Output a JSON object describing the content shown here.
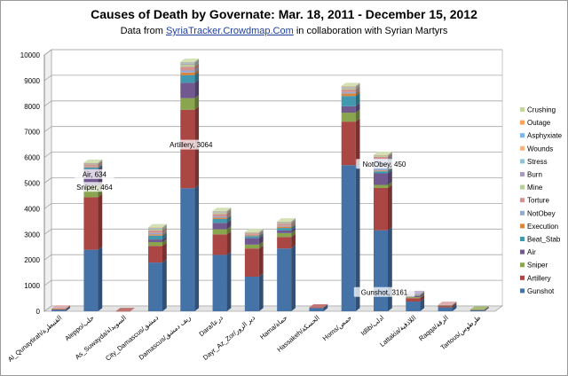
{
  "chart_data": {
    "type": "bar",
    "stacked": true,
    "three_d": true,
    "title": "Causes of Death by Governate: Mar. 18, 2011 - December 15, 2012",
    "subtitle_prefix": "Data from ",
    "subtitle_link": "SyriaTracker.Crowdmap.Com",
    "subtitle_suffix": "  in collaboration with Syrian Martyrs",
    "xlabel": "",
    "ylabel": "",
    "ylim": [
      0,
      10000
    ],
    "yticks": [
      0,
      1000,
      2000,
      3000,
      4000,
      5000,
      6000,
      7000,
      8000,
      9000,
      10000
    ],
    "grid": true,
    "legend_position": "right",
    "categories": [
      "Al_Qunaytirah/القنيطرة",
      "Aleppo/حلب",
      "As_Suwayda/السويداء",
      "City_Damascus/دمشق",
      "Damascus/ريف دمشق",
      "Dara/درعا",
      "Dayr_Az_Zor/دير الزور",
      "Hama/حماة",
      "Hassakeh/الحسكة",
      "Homs/حمص",
      "Idlib/ادلب",
      "Lattakia/اللاذقية",
      "Raqqa/الرقة",
      "Tartous/طرطوس"
    ],
    "series": [
      {
        "name": "Gunshot",
        "color": "#4572a7",
        "values": [
          60,
          2400,
          0,
          1900,
          4800,
          2200,
          1350,
          2450,
          130,
          5700,
          3161,
          380,
          150,
          40
        ]
      },
      {
        "name": "Artillery",
        "color": "#aa4643",
        "values": [
          30,
          2050,
          10,
          650,
          3064,
          800,
          1100,
          450,
          20,
          1700,
          1650,
          130,
          60,
          20
        ]
      },
      {
        "name": "Sniper",
        "color": "#89a54e",
        "values": [
          10,
          464,
          0,
          150,
          450,
          200,
          150,
          150,
          0,
          350,
          120,
          40,
          10,
          5
        ]
      },
      {
        "name": "Air",
        "color": "#71588f",
        "values": [
          0,
          634,
          0,
          100,
          600,
          250,
          250,
          100,
          0,
          250,
          450,
          50,
          20,
          0
        ]
      },
      {
        "name": "Beat_Stab",
        "color": "#4198af",
        "values": [
          0,
          60,
          0,
          150,
          300,
          150,
          80,
          100,
          0,
          400,
          80,
          20,
          0,
          0
        ]
      },
      {
        "name": "Execution",
        "color": "#db843d",
        "values": [
          0,
          20,
          0,
          50,
          100,
          50,
          30,
          50,
          0,
          100,
          30,
          10,
          0,
          0
        ]
      },
      {
        "name": "NotObey",
        "color": "#93a9cf",
        "values": [
          0,
          20,
          0,
          50,
          80,
          50,
          20,
          30,
          0,
          50,
          450,
          10,
          0,
          0
        ]
      },
      {
        "name": "Torture",
        "color": "#d19392",
        "values": [
          10,
          80,
          0,
          100,
          150,
          100,
          50,
          80,
          0,
          100,
          80,
          20,
          10,
          0
        ]
      },
      {
        "name": "Mine",
        "color": "#b9cd96",
        "values": [
          0,
          30,
          0,
          50,
          80,
          50,
          20,
          30,
          0,
          50,
          30,
          10,
          0,
          0
        ]
      },
      {
        "name": "Burn",
        "color": "#a99bbd",
        "values": [
          0,
          10,
          0,
          20,
          30,
          20,
          10,
          20,
          0,
          30,
          20,
          5,
          0,
          0
        ]
      },
      {
        "name": "Stress",
        "color": "#91c3d5",
        "values": [
          0,
          10,
          0,
          20,
          30,
          20,
          10,
          20,
          0,
          20,
          10,
          0,
          0,
          0
        ]
      },
      {
        "name": "Wounds",
        "color": "#f9b381",
        "values": [
          0,
          5,
          0,
          10,
          20,
          10,
          5,
          10,
          0,
          10,
          5,
          0,
          0,
          0
        ]
      },
      {
        "name": "Asphyxiate",
        "color": "#7cb5ec",
        "values": [
          0,
          5,
          0,
          10,
          10,
          5,
          5,
          5,
          0,
          10,
          5,
          0,
          0,
          0
        ]
      },
      {
        "name": "Outage",
        "color": "#f7a35c",
        "values": [
          0,
          5,
          0,
          10,
          10,
          5,
          5,
          5,
          0,
          10,
          5,
          0,
          0,
          0
        ]
      },
      {
        "name": "Crushing",
        "color": "#c4d79b",
        "values": [
          0,
          5,
          0,
          10,
          10,
          5,
          5,
          5,
          0,
          10,
          5,
          0,
          0,
          0
        ]
      }
    ],
    "annotations": [
      {
        "text": "Air, 634",
        "category": 1,
        "y": 5300
      },
      {
        "text": "Sniper, 464",
        "category": 1,
        "y": 4800
      },
      {
        "text": "Artillery, 3064",
        "category": 4,
        "y": 6450
      },
      {
        "text": "NotObey, 450",
        "category": 10,
        "y": 5700
      },
      {
        "text": "Gunshot, 3161",
        "category": 10,
        "y": 700
      }
    ]
  }
}
